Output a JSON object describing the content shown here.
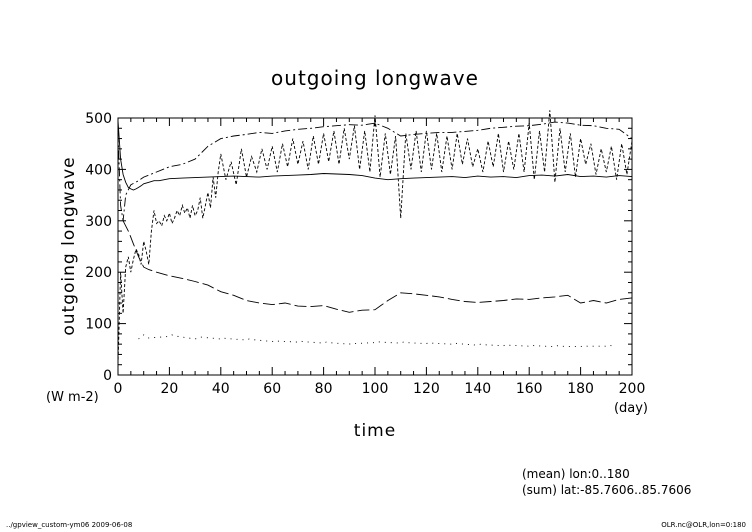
{
  "chart_data": {
    "type": "line",
    "title": "outgoing longwave",
    "ylabel": "outgoing longwave",
    "yunit": "(W m-2)",
    "xlabel": "time",
    "xunit": "(day)",
    "xlim": [
      0,
      200
    ],
    "ylim": [
      0,
      500
    ],
    "xticks": [
      "0",
      "20",
      "40",
      "60",
      "80",
      "100",
      "120",
      "140",
      "160",
      "180",
      "200"
    ],
    "yticks": [
      "0",
      "100",
      "200",
      "300",
      "400",
      "500"
    ],
    "grid": false,
    "legend": "none",
    "series": [
      {
        "style": "solid",
        "x": [
          0,
          1,
          2,
          3,
          4,
          5,
          6,
          7,
          8,
          9,
          10,
          12,
          14,
          16,
          18,
          20,
          25,
          30,
          35,
          40,
          45,
          50,
          55,
          60,
          65,
          70,
          75,
          80,
          85,
          90,
          95,
          100,
          105,
          110,
          115,
          120,
          125,
          130,
          135,
          140,
          145,
          150,
          155,
          160,
          165,
          170,
          175,
          180,
          185,
          190,
          195,
          200
        ],
        "y": [
          495,
          420,
          390,
          375,
          365,
          362,
          360,
          362,
          365,
          368,
          372,
          375,
          378,
          378,
          380,
          382,
          383,
          384,
          385,
          386,
          387,
          386,
          385,
          387,
          388,
          389,
          390,
          392,
          391,
          390,
          388,
          383,
          380,
          382,
          383,
          384,
          385,
          386,
          384,
          387,
          385,
          386,
          384,
          388,
          389,
          387,
          390,
          386,
          387,
          385,
          388,
          386
        ]
      },
      {
        "style": "dash-dot",
        "x": [
          0,
          1,
          2,
          3,
          5,
          8,
          10,
          15,
          20,
          25,
          30,
          35,
          40,
          45,
          50,
          55,
          60,
          65,
          70,
          75,
          80,
          85,
          90,
          95,
          100,
          105,
          110,
          115,
          120,
          125,
          130,
          135,
          140,
          145,
          150,
          155,
          160,
          165,
          170,
          175,
          180,
          185,
          190,
          195,
          200
        ],
        "y": [
          470,
          330,
          300,
          350,
          370,
          378,
          385,
          395,
          405,
          410,
          420,
          445,
          460,
          465,
          468,
          472,
          470,
          475,
          478,
          480,
          483,
          485,
          487,
          486,
          490,
          480,
          465,
          468,
          470,
          472,
          472,
          474,
          476,
          480,
          482,
          484,
          485,
          488,
          492,
          490,
          486,
          485,
          480,
          478,
          460
        ]
      },
      {
        "style": "long-dash",
        "x": [
          2,
          3,
          4,
          5,
          6,
          8,
          10,
          12,
          15,
          20,
          25,
          30,
          35,
          40,
          45,
          50,
          55,
          60,
          65,
          70,
          75,
          80,
          85,
          90,
          95,
          100,
          105,
          110,
          115,
          120,
          125,
          130,
          135,
          140,
          145,
          150,
          155,
          160,
          165,
          170,
          175,
          180,
          185,
          190,
          195,
          200
        ],
        "y": [
          300,
          290,
          280,
          268,
          255,
          230,
          210,
          205,
          200,
          193,
          188,
          182,
          175,
          162,
          155,
          145,
          140,
          137,
          140,
          134,
          133,
          135,
          128,
          122,
          126,
          127,
          145,
          160,
          158,
          155,
          152,
          147,
          143,
          141,
          143,
          145,
          148,
          147,
          150,
          152,
          155,
          140,
          145,
          140,
          147,
          150
        ]
      },
      {
        "style": "dashed",
        "x": [
          0,
          1,
          2,
          3,
          4,
          5,
          6,
          7,
          8,
          9,
          10,
          11,
          12,
          13,
          14,
          15,
          16,
          17,
          18,
          19,
          20,
          21,
          22,
          23,
          24,
          25,
          26,
          27,
          28,
          29,
          30,
          31,
          32,
          33,
          34,
          35,
          36,
          37,
          38,
          39,
          40,
          42,
          44,
          46,
          48,
          50,
          52,
          54,
          56,
          58,
          60,
          62,
          64,
          66,
          68,
          70,
          72,
          74,
          76,
          78,
          80,
          82,
          84,
          86,
          88,
          90,
          92,
          94,
          96,
          98,
          100,
          102,
          104,
          106,
          108,
          110,
          112,
          114,
          116,
          118,
          120,
          122,
          124,
          126,
          128,
          130,
          132,
          134,
          136,
          138,
          140,
          142,
          144,
          146,
          148,
          150,
          152,
          154,
          156,
          158,
          160,
          162,
          164,
          166,
          168,
          170,
          172,
          174,
          176,
          178,
          180,
          182,
          184,
          186,
          188,
          190,
          192,
          194,
          196,
          198,
          200
        ],
        "y": [
          20,
          200,
          120,
          210,
          230,
          200,
          225,
          245,
          235,
          215,
          260,
          240,
          215,
          280,
          320,
          295,
          300,
          290,
          310,
          300,
          315,
          295,
          305,
          320,
          310,
          330,
          315,
          325,
          305,
          330,
          310,
          320,
          345,
          305,
          330,
          355,
          325,
          385,
          345,
          395,
          430,
          380,
          415,
          370,
          440,
          385,
          425,
          395,
          440,
          400,
          445,
          395,
          450,
          405,
          460,
          410,
          455,
          400,
          465,
          410,
          470,
          415,
          475,
          410,
          480,
          420,
          485,
          400,
          475,
          395,
          505,
          385,
          470,
          390,
          465,
          305,
          470,
          400,
          475,
          395,
          475,
          400,
          470,
          395,
          465,
          400,
          470,
          410,
          460,
          405,
          440,
          395,
          455,
          405,
          470,
          395,
          455,
          400,
          470,
          395,
          490,
          380,
          475,
          395,
          515,
          375,
          480,
          395,
          470,
          385,
          460,
          410,
          450,
          390,
          440,
          395,
          445,
          380,
          450,
          390,
          455
        ]
      },
      {
        "style": "dotted",
        "x": [
          8,
          9,
          10,
          11,
          12,
          20,
          21,
          22,
          30,
          31,
          32,
          40,
          41,
          42,
          50,
          51,
          52,
          60,
          61,
          62,
          70,
          71,
          72,
          80,
          81,
          82,
          90,
          91,
          92,
          100,
          101,
          102,
          110,
          111,
          112,
          120,
          121,
          122,
          130,
          131,
          132,
          140,
          141,
          142,
          150,
          151,
          152,
          160,
          161,
          162,
          170,
          171,
          172,
          180,
          181,
          182,
          190,
          191,
          192
        ],
        "y": [
          70,
          75,
          78,
          74,
          72,
          75,
          78,
          76,
          70,
          72,
          74,
          70,
          72,
          71,
          68,
          70,
          69,
          65,
          67,
          66,
          64,
          66,
          65,
          62,
          64,
          63,
          60,
          62,
          61,
          63,
          65,
          64,
          62,
          64,
          63,
          61,
          63,
          62,
          60,
          62,
          61,
          58,
          60,
          59,
          57,
          59,
          58,
          56,
          58,
          57,
          55,
          57,
          56,
          55,
          57,
          56,
          56,
          58,
          57
        ]
      }
    ],
    "annotations": [
      "(mean) lon:0..180",
      "(sum) lat:-85.7606..85.7606"
    ]
  },
  "footer": {
    "left": "../gpview_custom-ym06  2009-06-08",
    "right": "OLR.nc@OLR,lon=0:180"
  }
}
